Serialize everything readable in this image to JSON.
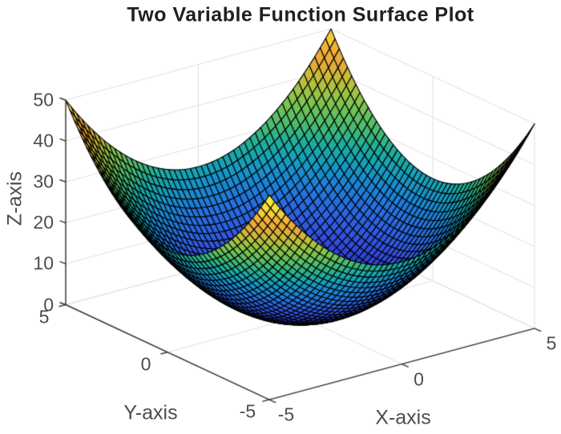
{
  "chart_data": {
    "type": "surface",
    "title": "Two Variable Function Surface Plot",
    "xlabel": "X-axis",
    "ylabel": "Y-axis",
    "zlabel": "Z-axis",
    "formula": "z = x^2 + y^2",
    "x_range": [
      -5,
      5
    ],
    "y_range": [
      -5,
      5
    ],
    "z_range": [
      0,
      50
    ],
    "x_ticks": [
      -5,
      0,
      5
    ],
    "y_ticks": [
      -5,
      0,
      5
    ],
    "z_ticks": [
      0,
      10,
      20,
      30,
      40,
      50
    ],
    "grid_points": 50,
    "view": {
      "azimuth": -37.5,
      "elevation": 30,
      "projection": "orthographic"
    },
    "colormap": {
      "name": "parula",
      "stops": [
        [
          0,
          32,
          40,
          140
        ],
        [
          0.07,
          37,
          50,
          180
        ],
        [
          0.15,
          49,
          67,
          217
        ],
        [
          0.22,
          50,
          87,
          224
        ],
        [
          0.3,
          39,
          108,
          223
        ],
        [
          0.38,
          26,
          132,
          214
        ],
        [
          0.45,
          20,
          158,
          190
        ],
        [
          0.52,
          30,
          174,
          155
        ],
        [
          0.58,
          70,
          186,
          115
        ],
        [
          0.64,
          105,
          194,
          90
        ],
        [
          0.7,
          148,
          196,
          72
        ],
        [
          0.76,
          196,
          189,
          57
        ],
        [
          0.82,
          229,
          171,
          56
        ],
        [
          0.87,
          241,
          169,
          58
        ],
        [
          0.93,
          244,
          210,
          58
        ],
        [
          1,
          250,
          236,
          60
        ]
      ]
    },
    "edge_color": "#000000",
    "grid_color": "#e0e0e0",
    "axis_color": "#333333",
    "text_color": "#4d4d4d",
    "title_color": "#1f1f1f",
    "background": "#ffffff"
  }
}
